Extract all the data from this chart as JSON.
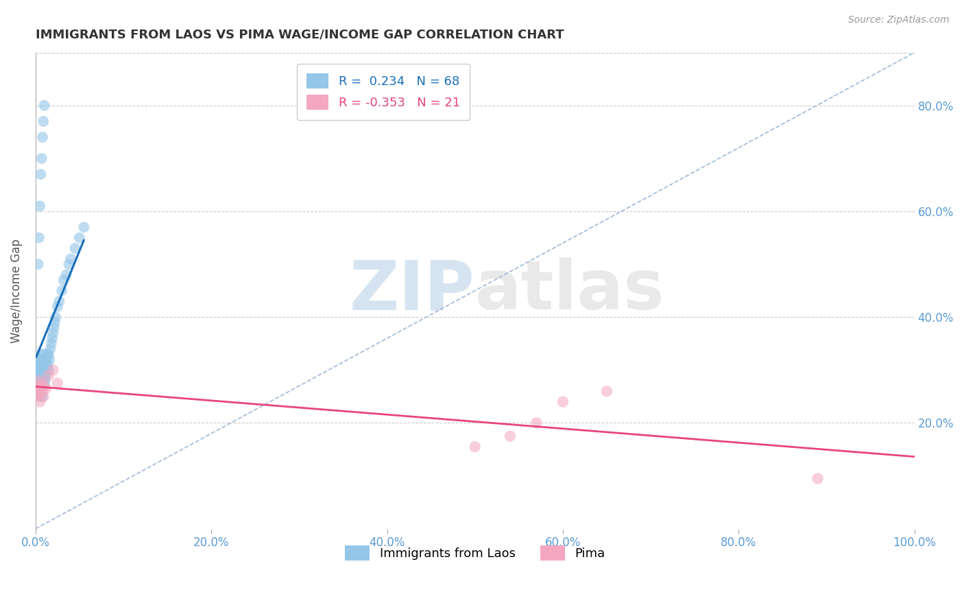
{
  "title": "IMMIGRANTS FROM LAOS VS PIMA WAGE/INCOME GAP CORRELATION CHART",
  "source": "Source: ZipAtlas.com",
  "ylabel": "Wage/Income Gap",
  "xlim": [
    0.0,
    1.0
  ],
  "ylim": [
    0.0,
    0.9
  ],
  "xticks": [
    0.0,
    0.2,
    0.4,
    0.6,
    0.8,
    1.0
  ],
  "xticklabels": [
    "0.0%",
    "20.0%",
    "40.0%",
    "60.0%",
    "80.0%",
    "100.0%"
  ],
  "right_yticks": [
    0.2,
    0.4,
    0.6,
    0.8
  ],
  "right_yticklabels": [
    "20.0%",
    "40.0%",
    "60.0%",
    "80.0%"
  ],
  "r_blue": 0.234,
  "n_blue": 68,
  "r_pink": -0.353,
  "n_pink": 21,
  "blue_color": "#93c6e8",
  "pink_color": "#f4a7c0",
  "line_blue": "#1a6fba",
  "line_pink": "#e8457a",
  "legend_blue": "Immigrants from Laos",
  "legend_pink": "Pima",
  "blue_scatter_x": [
    0.001,
    0.002,
    0.002,
    0.003,
    0.003,
    0.003,
    0.004,
    0.004,
    0.004,
    0.004,
    0.005,
    0.005,
    0.005,
    0.005,
    0.005,
    0.006,
    0.006,
    0.006,
    0.006,
    0.007,
    0.007,
    0.007,
    0.008,
    0.008,
    0.008,
    0.008,
    0.009,
    0.009,
    0.009,
    0.01,
    0.01,
    0.01,
    0.011,
    0.011,
    0.012,
    0.012,
    0.013,
    0.013,
    0.014,
    0.014,
    0.015,
    0.015,
    0.016,
    0.017,
    0.018,
    0.019,
    0.02,
    0.021,
    0.022,
    0.023,
    0.025,
    0.027,
    0.03,
    0.032,
    0.035,
    0.038,
    0.04,
    0.045,
    0.05,
    0.055,
    0.003,
    0.004,
    0.005,
    0.006,
    0.007,
    0.008,
    0.009,
    0.01
  ],
  "blue_scatter_y": [
    0.29,
    0.28,
    0.3,
    0.27,
    0.29,
    0.31,
    0.26,
    0.28,
    0.3,
    0.32,
    0.25,
    0.27,
    0.29,
    0.31,
    0.33,
    0.26,
    0.28,
    0.3,
    0.32,
    0.27,
    0.29,
    0.31,
    0.25,
    0.27,
    0.29,
    0.32,
    0.28,
    0.3,
    0.33,
    0.27,
    0.29,
    0.31,
    0.28,
    0.3,
    0.29,
    0.31,
    0.3,
    0.32,
    0.31,
    0.33,
    0.3,
    0.33,
    0.32,
    0.34,
    0.35,
    0.36,
    0.37,
    0.38,
    0.39,
    0.4,
    0.42,
    0.43,
    0.45,
    0.47,
    0.48,
    0.5,
    0.51,
    0.53,
    0.55,
    0.57,
    0.5,
    0.55,
    0.61,
    0.67,
    0.7,
    0.74,
    0.77,
    0.8
  ],
  "pink_scatter_x": [
    0.001,
    0.002,
    0.003,
    0.004,
    0.005,
    0.005,
    0.006,
    0.007,
    0.008,
    0.009,
    0.01,
    0.012,
    0.015,
    0.02,
    0.025,
    0.5,
    0.54,
    0.57,
    0.6,
    0.65,
    0.89
  ],
  "pink_scatter_y": [
    0.25,
    0.27,
    0.26,
    0.28,
    0.255,
    0.24,
    0.265,
    0.275,
    0.26,
    0.25,
    0.27,
    0.265,
    0.29,
    0.3,
    0.275,
    0.155,
    0.175,
    0.2,
    0.24,
    0.26,
    0.095
  ],
  "background_color": "#ffffff",
  "grid_color": "#cccccc",
  "title_color": "#333333",
  "tick_color": "#5b9bd5",
  "watermark_color_zip": "#8ab4d8",
  "watermark_color_atlas": "#c0c0c0",
  "watermark_alpha": 0.35
}
